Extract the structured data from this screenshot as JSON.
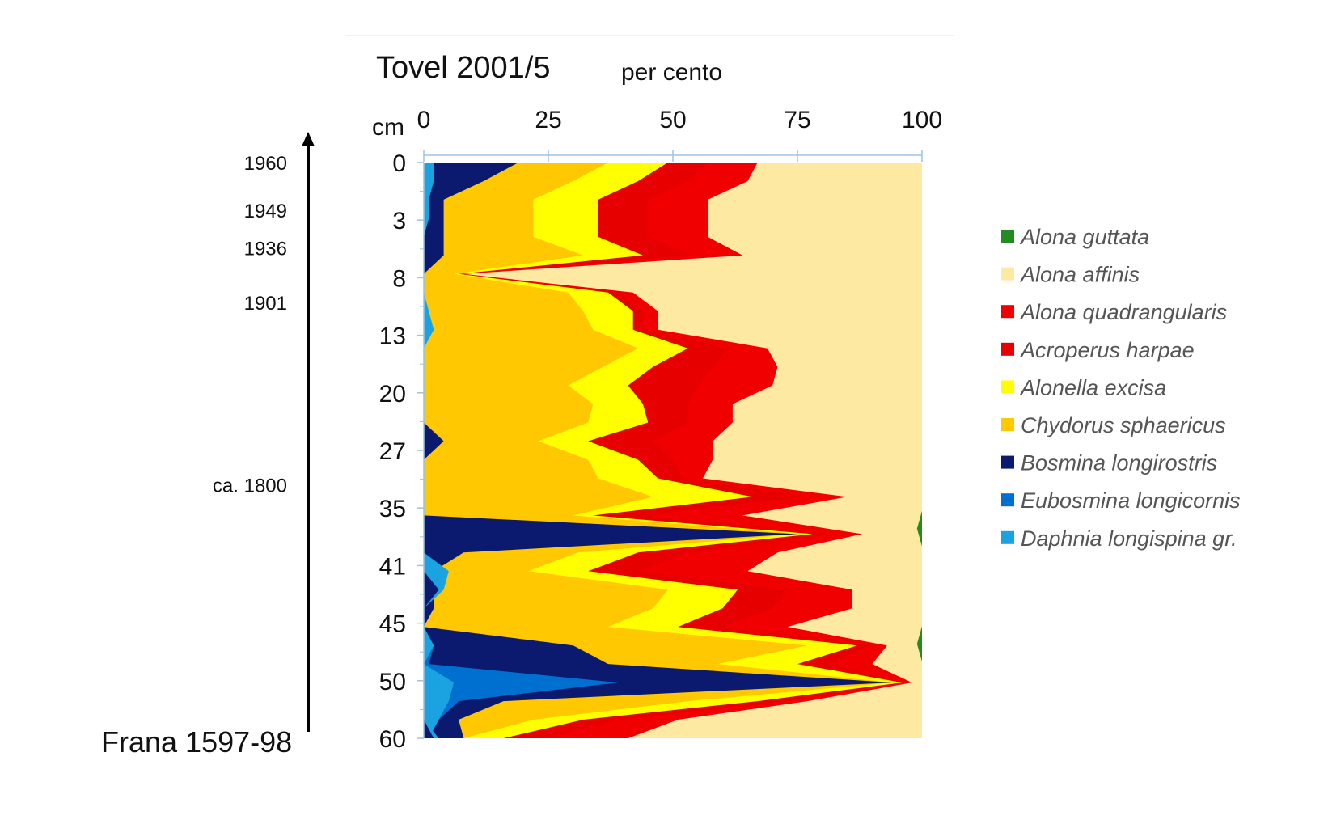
{
  "chart_data": {
    "type": "area",
    "orientation": "vertical-depth-profile",
    "title": "Tovel 2001/5",
    "xlabel": "per cento",
    "ylabel": "cm",
    "xlim": [
      0,
      100
    ],
    "x_ticks": [
      "0",
      "25",
      "50",
      "75",
      "100"
    ],
    "y_ticks": [
      "0",
      "3",
      "8",
      "13",
      "20",
      "27",
      "35",
      "41",
      "45",
      "50",
      "60"
    ],
    "time_labels": [
      "1960",
      "1949",
      "1936",
      "1901",
      "ca. 1800"
    ],
    "event_label": "Frana 1597-98",
    "grid": false,
    "legend_position": "right",
    "stacked": true,
    "sample_positions": [
      0,
      1,
      2,
      3,
      4,
      5,
      6,
      7,
      8,
      9,
      10,
      11,
      12,
      13,
      14,
      15,
      16,
      17,
      18,
      19,
      20,
      21,
      22,
      23,
      24,
      25,
      26,
      27,
      28,
      29,
      30,
      31
    ],
    "series": [
      {
        "name": "Alona guttata",
        "color": "#228B22",
        "values": [
          0,
          0,
          0,
          0,
          0,
          0,
          0,
          0,
          0,
          0,
          0,
          0,
          0,
          0,
          0,
          0,
          0,
          0,
          0,
          0,
          0,
          0,
          0,
          0,
          0,
          0,
          0,
          0,
          0,
          0,
          0,
          0
        ]
      },
      {
        "name": "Alona affinis",
        "color": "#FDE9A2",
        "values": [
          33,
          35,
          43,
          43,
          43,
          36,
          92,
          58,
          53,
          53,
          31,
          29,
          30,
          38,
          38,
          42,
          42,
          44,
          15,
          36,
          12,
          29,
          35,
          14,
          14,
          29,
          7,
          10,
          2,
          23,
          49,
          59
        ]
      },
      {
        "name": "Alona quadrangularis",
        "color": "#F00000",
        "values": [
          10,
          12,
          12,
          12,
          12,
          10,
          1,
          3,
          3,
          3,
          8,
          13,
          15,
          9,
          9,
          12,
          8,
          4,
          9,
          20,
          6,
          18,
          22,
          13,
          16,
          13,
          3,
          9,
          1,
          5,
          12,
          17
        ]
      },
      {
        "name": "Acroperus harpae",
        "color": "#E60000",
        "values": [
          8,
          10,
          10,
          10,
          10,
          10,
          0,
          2,
          2,
          2,
          8,
          12,
          14,
          9,
          8,
          13,
          7,
          5,
          10,
          10,
          4,
          10,
          10,
          10,
          10,
          9,
          3,
          6,
          1,
          5,
          7,
          8
        ]
      },
      {
        "name": "Alonella excisa",
        "color": "#FFFF00",
        "values": [
          12,
          13,
          13,
          13,
          13,
          12,
          1,
          8,
          10,
          8,
          10,
          10,
          12,
          10,
          12,
          10,
          10,
          12,
          20,
          4,
          3,
          12,
          12,
          14,
          14,
          14,
          10,
          16,
          2,
          14,
          10,
          8
        ]
      },
      {
        "name": "Chydorus sphaericus",
        "color": "#FFC800",
        "values": [
          18,
          18,
          18,
          18,
          18,
          28,
          6,
          29,
          32,
          34,
          43,
          36,
          29,
          34,
          33,
          19,
          33,
          35,
          46,
          30,
          0,
          23,
          19,
          47,
          44,
          37,
          47,
          22,
          0,
          37,
          15,
          0
        ]
      },
      {
        "name": "Bosmina longirostris",
        "color": "#0B1A6E",
        "values": [
          19,
          12,
          4,
          3,
          4,
          4,
          0,
          0,
          0,
          0,
          0,
          0,
          0,
          0,
          0,
          4,
          0,
          0,
          0,
          0,
          75,
          8,
          2,
          2,
          2,
          0,
          28,
          36,
          55,
          9,
          4,
          7
        ]
      },
      {
        "name": "Eubosmina longicornis",
        "color": "#0070D0",
        "values": [
          0,
          0,
          0,
          0,
          0,
          0,
          0,
          0,
          0,
          0,
          0,
          0,
          0,
          0,
          0,
          0,
          0,
          0,
          0,
          0,
          0,
          0,
          0,
          0,
          0,
          0,
          0,
          1,
          33,
          2,
          0,
          0
        ]
      },
      {
        "name": "Daphnia longispina gr.",
        "color": "#1AA3E0",
        "values": [
          0,
          0,
          0,
          1,
          0,
          0,
          0,
          0,
          0,
          0,
          0,
          0,
          0,
          0,
          0,
          0,
          0,
          0,
          0,
          0,
          0,
          0,
          0,
          0,
          0,
          0,
          2,
          0,
          6,
          5,
          3,
          1
        ]
      }
    ],
    "left_edge_markers": [
      {
        "series": "Daphnia longispina gr.",
        "values": [
          2,
          2,
          1,
          1,
          0,
          0,
          0,
          0,
          1,
          2,
          0,
          0,
          0,
          0,
          0,
          0,
          0,
          0,
          0,
          0,
          0,
          0,
          5,
          4,
          0,
          0,
          2,
          0,
          6,
          5,
          0,
          3
        ]
      },
      {
        "series": "Bosmina longirostris",
        "values": [
          0,
          0,
          0,
          0,
          0,
          0,
          0,
          0,
          0,
          0,
          0,
          0,
          0,
          0,
          0,
          0,
          0,
          0,
          0,
          0,
          0,
          0,
          0,
          3,
          0,
          0,
          0,
          0,
          0,
          0,
          0,
          2
        ]
      }
    ],
    "guttata_blips": [
      {
        "between_ticks": [
          "35",
          "41"
        ],
        "value": 1
      },
      {
        "between_ticks": [
          "45",
          "50"
        ],
        "value": 1
      }
    ]
  }
}
